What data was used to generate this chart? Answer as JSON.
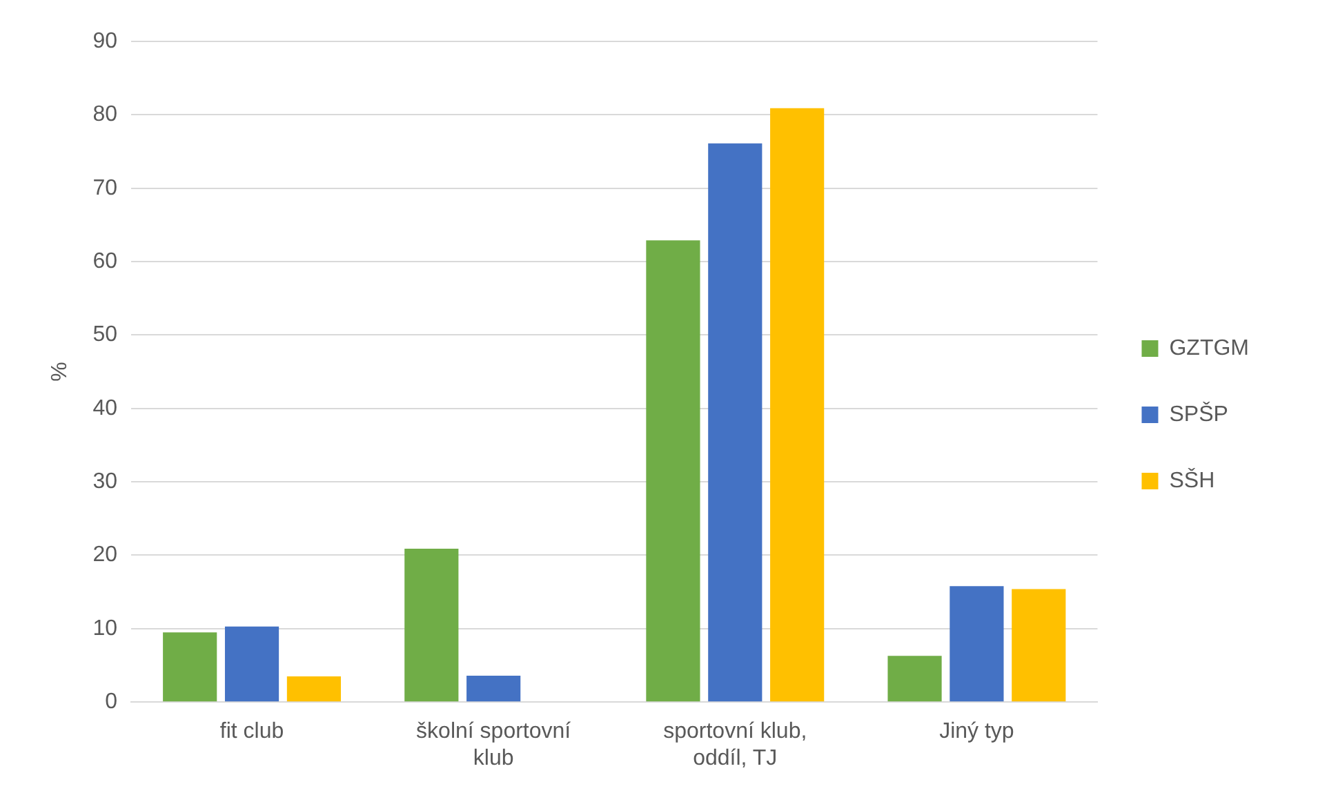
{
  "chart_data": {
    "type": "bar",
    "ylabel": "%",
    "categories": [
      "fit club",
      "školní sportovní klub",
      "sportovní klub, oddíl, TJ",
      "Jiný typ"
    ],
    "series": [
      {
        "name": "GZTGM",
        "color": "#70ad47",
        "values": [
          9.5,
          20.9,
          62.9,
          6.3
        ]
      },
      {
        "name": "SPŠP",
        "color": "#4472c4",
        "values": [
          10.3,
          3.6,
          76.1,
          15.8
        ]
      },
      {
        "name": "SŠH",
        "color": "#ffc000",
        "values": [
          3.5,
          0,
          80.9,
          15.4
        ]
      }
    ],
    "ylim": [
      0,
      90
    ],
    "yticks": [
      0,
      10,
      20,
      30,
      40,
      50,
      60,
      70,
      80,
      90
    ],
    "grid": "y",
    "legend": "right"
  }
}
